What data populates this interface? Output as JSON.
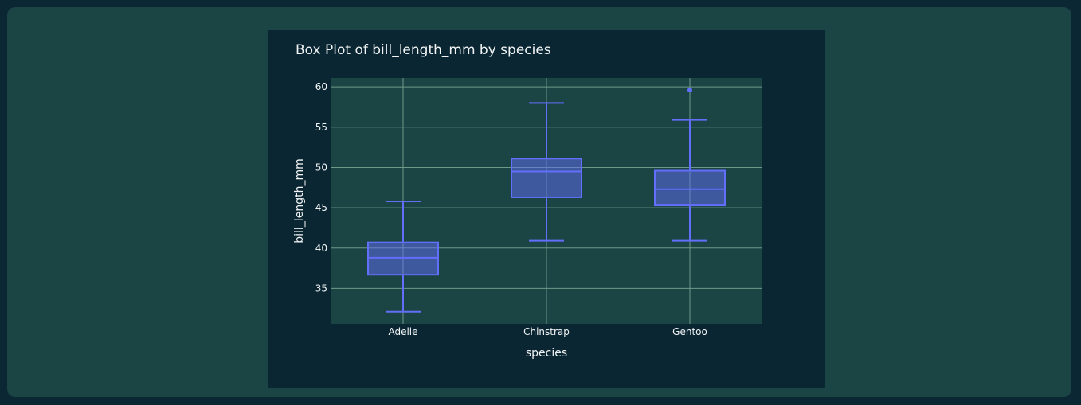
{
  "colors": {
    "page_background": "#0b2733",
    "panel_background": "#1b4444",
    "figure_background": "#0b2633",
    "plot_background": "#1b4545",
    "grid": "#6f9888",
    "box_color": "#636efa",
    "text": "#f2f5f5"
  },
  "chart_data": {
    "type": "box",
    "title": "Box Plot of bill_length_mm by species",
    "xlabel": "species",
    "ylabel": "bill_length_mm",
    "categories": [
      "Adelie",
      "Chinstrap",
      "Gentoo"
    ],
    "ylim": [
      30.6,
      61.1
    ],
    "yticks": [
      35,
      40,
      45,
      50,
      55,
      60
    ],
    "grid": true,
    "boxes": [
      {
        "category": "Adelie",
        "min": 32.1,
        "q1": 36.7,
        "median": 38.8,
        "q3": 40.7,
        "max": 45.8,
        "outliers": []
      },
      {
        "category": "Chinstrap",
        "min": 40.9,
        "q1": 46.3,
        "median": 49.5,
        "q3": 51.1,
        "max": 58.0,
        "outliers": []
      },
      {
        "category": "Gentoo",
        "min": 40.9,
        "q1": 45.3,
        "median": 47.3,
        "q3": 49.6,
        "max": 55.9,
        "outliers": [
          59.6
        ]
      }
    ]
  }
}
